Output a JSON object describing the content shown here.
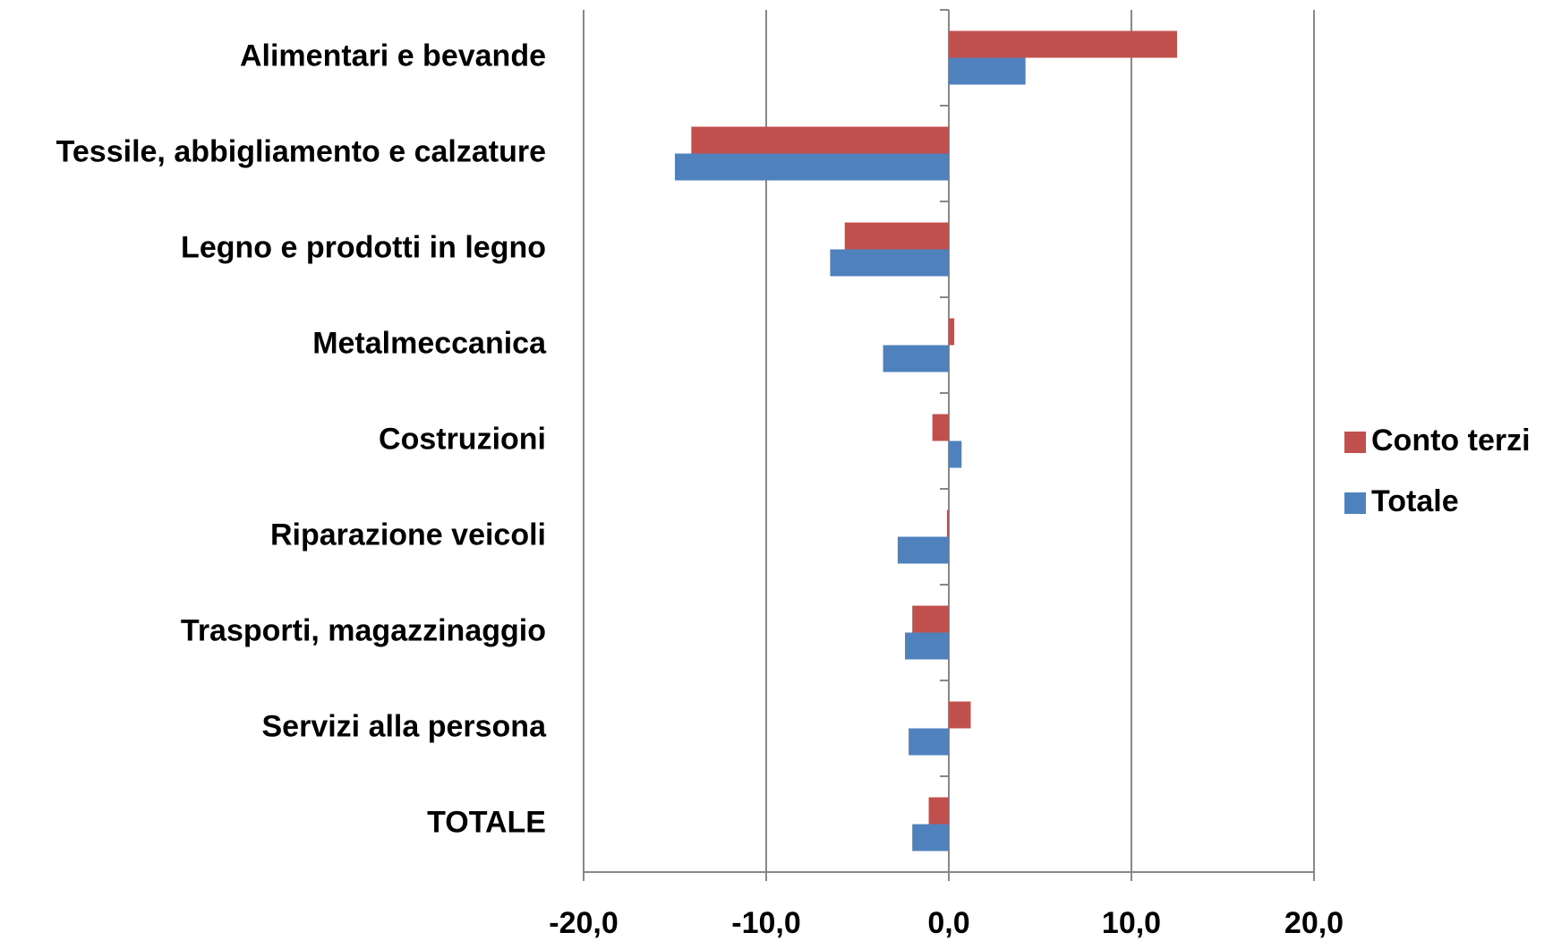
{
  "chart_data": {
    "type": "barh",
    "categories": [
      "Alimentari e bevande",
      "Tessile, abbigliamento e calzature",
      "Legno e prodotti in legno",
      "Metalmeccanica",
      "Costruzioni",
      "Riparazione veicoli",
      "Trasporti, magazzinaggio",
      "Servizi alla persona",
      "TOTALE"
    ],
    "series": [
      {
        "name": "Conto terzi",
        "color": "#c0504d",
        "values": [
          12.5,
          -14.1,
          -5.7,
          0.3,
          -0.9,
          -0.1,
          -2.0,
          1.2,
          -1.1
        ]
      },
      {
        "name": "Totale",
        "color": "#4f81bd",
        "values": [
          4.2,
          -15.0,
          -6.5,
          -3.6,
          0.7,
          -2.8,
          -2.4,
          -2.2,
          -2.0
        ]
      }
    ],
    "xlim": [
      -20,
      20
    ],
    "xticks": [
      {
        "value": -20,
        "label": "-20,0"
      },
      {
        "value": -10,
        "label": "-10,0"
      },
      {
        "value": 0,
        "label": "0,0"
      },
      {
        "value": 10,
        "label": "10,0"
      },
      {
        "value": 20,
        "label": "20,0"
      }
    ],
    "grid": true,
    "legend": "right"
  }
}
